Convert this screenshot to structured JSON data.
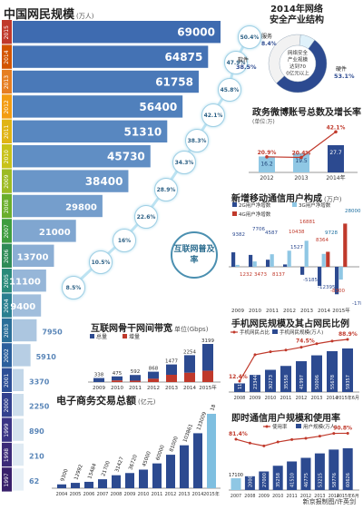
{
  "main_title": "中国网民规模",
  "main_unit": "(万人)",
  "penetration_label": "互联网普及率",
  "penetration": [
    {
      "year": "2015",
      "rate": "50.4%"
    },
    {
      "year": "2014",
      "rate": "47.9%"
    },
    {
      "year": "2013",
      "rate": "45.8%"
    },
    {
      "year": "2012",
      "rate": "42.1%"
    },
    {
      "year": "2011",
      "rate": "38.3%"
    },
    {
      "year": "2010",
      "rate": "34.3%"
    },
    {
      "year": "2009",
      "rate": "28.9%"
    },
    {
      "year": "2008",
      "rate": "22.6%"
    },
    {
      "year": "2007",
      "rate": "16%"
    },
    {
      "year": "2006",
      "rate": "10.5%"
    },
    {
      "year": "2005",
      "rate": "8.5%"
    }
  ],
  "security": {
    "title_line1": "2014年网络",
    "title_line2": "安全产业结构",
    "center_text": "网络安全产业规模达到700亿元以上",
    "slices": [
      {
        "label": "服务",
        "value": "8.4%",
        "pct": 8.4,
        "color": "#dff1fa"
      },
      {
        "label": "硬件",
        "value": "53.1%",
        "pct": 53.1,
        "color": "#2c4a90"
      },
      {
        "label": "软件",
        "value": "38.5%",
        "pct": 38.5,
        "color": "#f2f2f2"
      }
    ]
  },
  "weibo": {
    "title": "政务微博账号总数及增长率",
    "unit": "(单位:万)",
    "categories": [
      "2012",
      "2013",
      "2014年"
    ],
    "values": [
      "16.2",
      "19.5",
      "27.7"
    ],
    "rates": [
      "20.9%",
      "20.4%",
      "42.1%"
    ]
  },
  "mobile_users": {
    "title": "新增移动通信用户构成",
    "unit": "(万户)",
    "legend": [
      "2G用户净增数",
      "3G用户净增数",
      "4G用户净增数"
    ],
    "categories": [
      "2009",
      "2010",
      "2011",
      "2012",
      "2013",
      "2014",
      "2015年"
    ],
    "labels_2g": [
      "9382",
      "7706",
      "4587",
      "1527",
      "-5185",
      "-12395",
      "-17800"
    ],
    "labels_3g": [
      "1232",
      "3473",
      "8137",
      "10438",
      "16881",
      "8364",
      "-8300"
    ],
    "labels_4g": [
      "9728",
      "28000"
    ]
  },
  "bandwidth": {
    "title": "互联网骨干网间带宽",
    "unit": "单位(Gbps)",
    "legend": [
      "总量",
      "增量"
    ],
    "categories": [
      "2009",
      "2010",
      "2011",
      "2012",
      "2013",
      "2014",
      "2015年"
    ],
    "totals": [
      "338",
      "475",
      "592",
      "868",
      "1477",
      "2254",
      "3199"
    ]
  },
  "mobile_netizens": {
    "title": "手机网民规模及其占网民比例",
    "legend": [
      "手机网民占比",
      "手机网民规模(万人)"
    ],
    "categories": [
      "2008",
      "2009",
      "2010",
      "2011",
      "2012",
      "2013",
      "2014",
      "2015年6月"
    ],
    "values": [
      "11760",
      "23344",
      "30273",
      "35558",
      "41997",
      "50006",
      "55678",
      "59357"
    ],
    "rates": [
      "12.4%",
      "74.5%",
      "88.9%"
    ]
  },
  "instant_msg": {
    "title": "即时通信用户规模和使用率",
    "legend": [
      "使用率",
      "用户规模(万人)"
    ],
    "categories": [
      "2007",
      "2008",
      "2009",
      "2010",
      "2011",
      "2012",
      "2013",
      "2014",
      "2015年6月"
    ],
    "values": [
      "17100",
      "20000",
      "27000",
      "35258",
      "41510",
      "46775",
      "53215",
      "58776",
      "60626"
    ],
    "rates": [
      "81.4%",
      "90.8%"
    ]
  },
  "ecommerce": {
    "title": "电子商务交易总额",
    "unit": "(亿元)",
    "categories": [
      "2004",
      "2005",
      "2006",
      "2007",
      "2008",
      "2009",
      "2010",
      "2011",
      "2012",
      "2013",
      "2014",
      "2015年"
    ],
    "labels": [
      "9300",
      "12992",
      "15484",
      "21700",
      "31427",
      "36720",
      "45000",
      "60000",
      "81000",
      "103861",
      "133009",
      "180000"
    ]
  },
  "footer": "新京报制图/许英剑",
  "chart_data": [
    {
      "type": "bar",
      "title": "中国网民规模",
      "ylabel": "万人",
      "categories": [
        "2015",
        "2014",
        "2013",
        "2012",
        "2011",
        "2010",
        "2009",
        "2008",
        "2007",
        "2006",
        "2005",
        "2004",
        "2003",
        "2002",
        "2001",
        "2000",
        "1999",
        "1998",
        "1997"
      ],
      "values": [
        69000,
        64875,
        61758,
        56400,
        51310,
        45730,
        38400,
        29800,
        21000,
        13700,
        11100,
        9400,
        7950,
        5910,
        3370,
        2250,
        890,
        210,
        62
      ]
    },
    {
      "type": "line",
      "title": "互联网普及率",
      "categories": [
        "2015",
        "2014",
        "2013",
        "2012",
        "2011",
        "2010",
        "2009",
        "2008",
        "2007",
        "2006",
        "2005"
      ],
      "values": [
        50.4,
        47.9,
        45.8,
        42.1,
        38.3,
        34.3,
        28.9,
        22.6,
        16,
        10.5,
        8.5
      ]
    },
    {
      "type": "pie",
      "title": "2014年网络安全产业结构",
      "categories": [
        "服务",
        "硬件",
        "软件"
      ],
      "values": [
        8.4,
        53.1,
        38.5
      ]
    },
    {
      "type": "bar",
      "title": "政务微博账号总数及增长率",
      "ylabel": "单位:万",
      "categories": [
        "2012",
        "2013",
        "2014年"
      ],
      "series": [
        {
          "name": "账号总数",
          "values": [
            16.2,
            19.5,
            27.7
          ]
        },
        {
          "name": "增长率",
          "values": [
            20.9,
            20.4,
            42.1
          ]
        }
      ]
    },
    {
      "type": "bar",
      "title": "新增移动通信用户构成",
      "ylabel": "万户",
      "categories": [
        "2009",
        "2010",
        "2011",
        "2012",
        "2013",
        "2014",
        "2015年"
      ],
      "series": [
        {
          "name": "2G用户净增数",
          "values": [
            9382,
            7706,
            4587,
            1527,
            -5185,
            -12395,
            -17800
          ]
        },
        {
          "name": "3G用户净增数",
          "values": [
            1232,
            3473,
            8137,
            10438,
            16881,
            8364,
            -8300
          ]
        },
        {
          "name": "4G用户净增数",
          "values": [
            0,
            0,
            0,
            0,
            0,
            9728,
            28000
          ]
        }
      ]
    },
    {
      "type": "bar",
      "title": "互联网骨干网间带宽",
      "ylabel": "Gbps",
      "categories": [
        "2009",
        "2010",
        "2011",
        "2012",
        "2013",
        "2014",
        "2015年"
      ],
      "series": [
        {
          "name": "总量",
          "values": [
            338,
            475,
            592,
            868,
            1477,
            2254,
            3199
          ]
        },
        {
          "name": "增量",
          "values": [
            0,
            137,
            117,
            276,
            609,
            777,
            945
          ]
        }
      ]
    },
    {
      "type": "bar",
      "title": "手机网民规模及其占网民比例",
      "categories": [
        "2008",
        "2009",
        "2010",
        "2011",
        "2012",
        "2013",
        "2014",
        "2015年6月"
      ],
      "series": [
        {
          "name": "手机网民规模(万人)",
          "values": [
            11760,
            23344,
            30273,
            35558,
            41997,
            50006,
            55678,
            59357
          ]
        },
        {
          "name": "手机网民占比",
          "values": [
            12.4,
            60.8,
            66.2,
            69.3,
            74.5,
            81,
            85.8,
            88.9
          ]
        }
      ]
    },
    {
      "type": "bar",
      "title": "即时通信用户规模和使用率",
      "categories": [
        "2007",
        "2008",
        "2009",
        "2010",
        "2011",
        "2012",
        "2013",
        "2014",
        "2015年6月"
      ],
      "series": [
        {
          "name": "用户规模(万人)",
          "values": [
            17100,
            20000,
            27000,
            35258,
            41510,
            46775,
            53215,
            58776,
            60626
          ]
        },
        {
          "name": "使用率",
          "values": [
            81.4,
            75.3,
            70.9,
            77.1,
            80.9,
            82.9,
            86.2,
            90.6,
            90.8
          ]
        }
      ]
    },
    {
      "type": "bar",
      "title": "电子商务交易总额",
      "ylabel": "亿元",
      "categories": [
        "2004",
        "2005",
        "2006",
        "2007",
        "2008",
        "2009",
        "2010",
        "2011",
        "2012",
        "2013",
        "2014",
        "2015年"
      ],
      "values": [
        9300,
        12992,
        15484,
        21700,
        31427,
        36720,
        45000,
        60000,
        81000,
        103861,
        133009,
        180000
      ]
    }
  ]
}
